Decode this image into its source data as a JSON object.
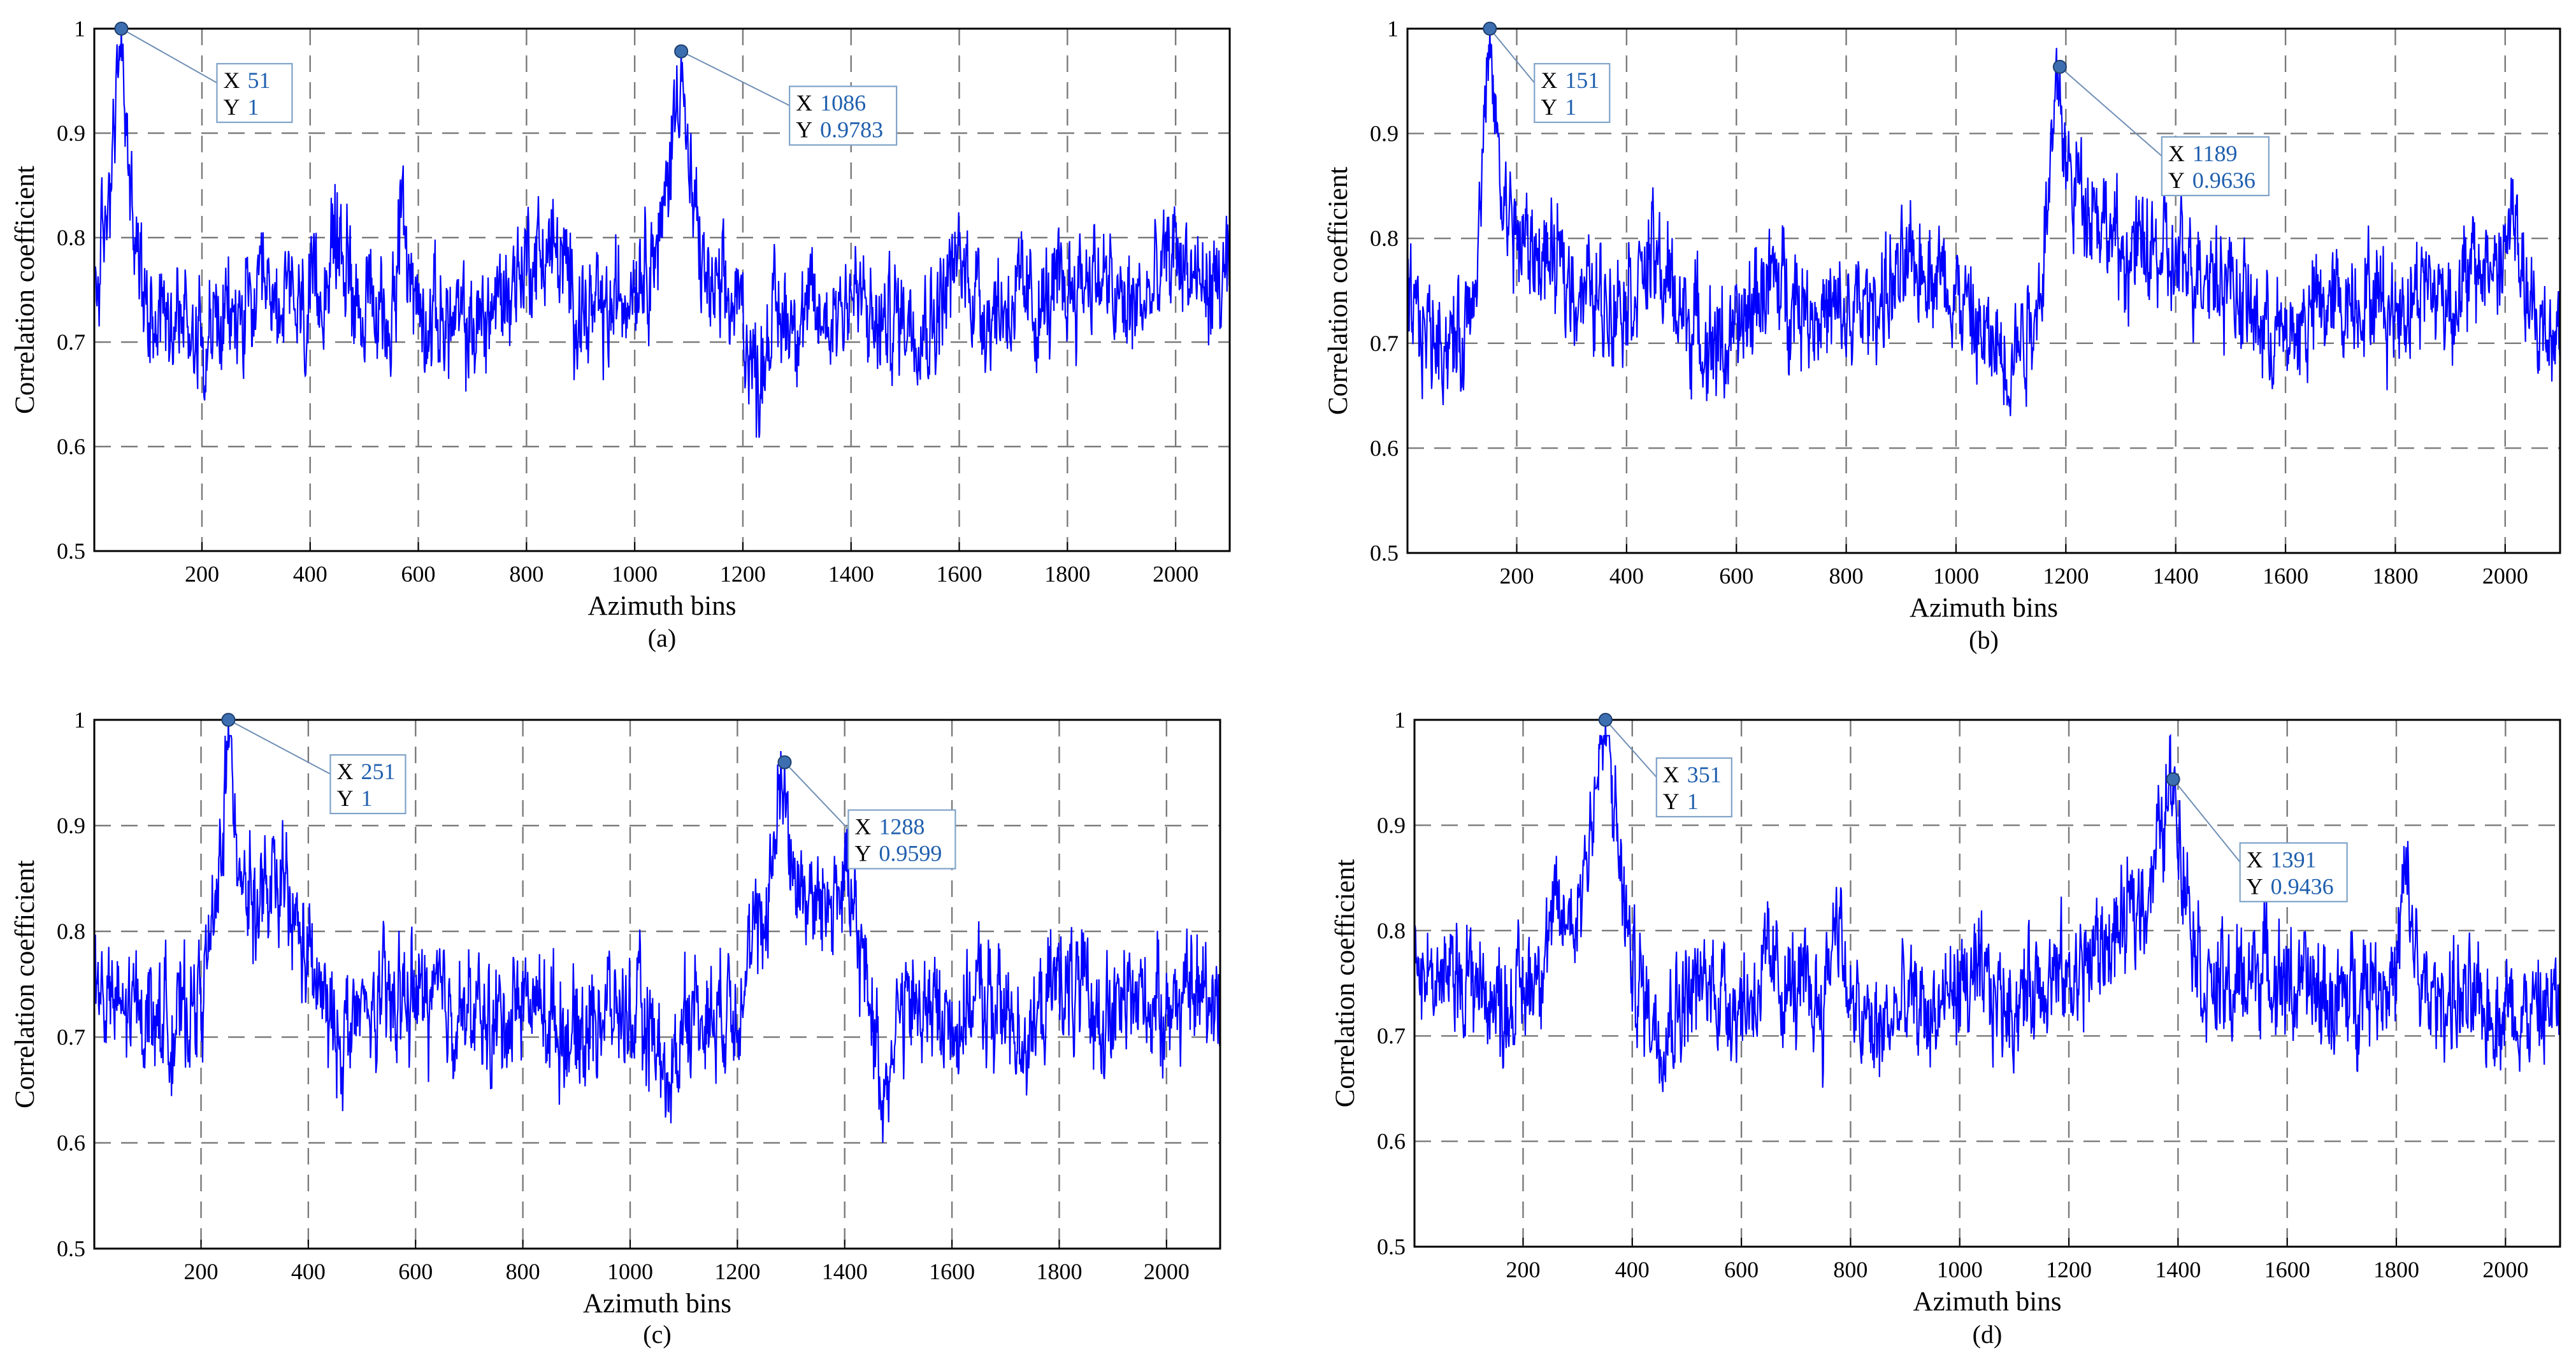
{
  "figure": {
    "panels": [
      {
        "caption": "(a)",
        "chart_data": {
          "type": "line",
          "xlabel": "Azimuth bins",
          "ylabel": "Correlation coefficient",
          "xlim": [
            1,
            2100
          ],
          "ylim": [
            0.5,
            1
          ],
          "xticks": [
            "200",
            "400",
            "600",
            "800",
            "1000",
            "1200",
            "1400",
            "1600",
            "1800",
            "2000"
          ],
          "yticks": [
            "0.5",
            "0.6",
            "0.7",
            "0.8",
            "0.9",
            "1"
          ],
          "grid": true,
          "line_color": "#0000ff",
          "series": [
            {
              "x": [
                1,
                20,
                40,
                51,
                60,
                80,
                100,
                150,
                200,
                250,
                300,
                350,
                400,
                450,
                500,
                550,
                565,
                600,
                650,
                700,
                750,
                800,
                850,
                900,
                950,
                1000,
                1050,
                1070,
                1086,
                1100,
                1130,
                1150,
                1200,
                1225,
                1250,
                1300,
                1350,
                1400,
                1450,
                1500,
                1550,
                1600,
                1650,
                1700,
                1750,
                1800,
                1850,
                1900,
                1950,
                2000,
                2050,
                2100
              ],
              "y": [
                0.74,
                0.8,
                0.92,
                1.0,
                0.9,
                0.78,
                0.74,
                0.73,
                0.71,
                0.72,
                0.73,
                0.74,
                0.72,
                0.8,
                0.73,
                0.72,
                0.82,
                0.73,
                0.72,
                0.71,
                0.74,
                0.78,
                0.79,
                0.73,
                0.72,
                0.77,
                0.8,
                0.9,
                0.9783,
                0.85,
                0.76,
                0.74,
                0.73,
                0.66,
                0.72,
                0.73,
                0.72,
                0.75,
                0.71,
                0.73,
                0.72,
                0.78,
                0.73,
                0.74,
                0.73,
                0.75,
                0.77,
                0.73,
                0.74,
                0.79,
                0.75,
                0.76
              ]
            }
          ],
          "annotations": [
            {
              "x": 51,
              "y": 1,
              "x_label": "X",
              "y_label": "Y",
              "x_text": "51",
              "y_text": "1"
            },
            {
              "x": 1086,
              "y": 0.9783,
              "x_label": "X",
              "y_label": "Y",
              "x_text": "1086",
              "y_text": "0.9783"
            }
          ]
        }
      },
      {
        "caption": "(b)",
        "chart_data": {
          "type": "line",
          "xlabel": "Azimuth bins",
          "ylabel": "Correlation coefficient",
          "xlim": [
            1,
            2100
          ],
          "ylim": [
            0.5,
            1
          ],
          "xticks": [
            "200",
            "400",
            "600",
            "800",
            "1000",
            "1200",
            "1400",
            "1600",
            "1800",
            "2000"
          ],
          "yticks": [
            "0.5",
            "0.6",
            "0.7",
            "0.8",
            "0.9",
            "1"
          ],
          "grid": true,
          "line_color": "#0000ff",
          "series": [
            {
              "x": [
                1,
                50,
                100,
                130,
                151,
                170,
                200,
                250,
                300,
                350,
                400,
                450,
                500,
                550,
                600,
                650,
                700,
                750,
                800,
                850,
                900,
                950,
                1000,
                1050,
                1100,
                1150,
                1189,
                1200,
                1250,
                1300,
                1350,
                1400,
                1450,
                1500,
                1550,
                1600,
                1650,
                1700,
                1750,
                1800,
                1850,
                1900,
                1950,
                2000,
                2010,
                2050,
                2100
              ],
              "y": [
                0.72,
                0.71,
                0.7,
                0.8,
                1.0,
                0.85,
                0.8,
                0.78,
                0.76,
                0.74,
                0.75,
                0.78,
                0.73,
                0.7,
                0.7,
                0.76,
                0.75,
                0.73,
                0.72,
                0.74,
                0.76,
                0.78,
                0.75,
                0.7,
                0.69,
                0.74,
                0.9636,
                0.86,
                0.84,
                0.78,
                0.79,
                0.77,
                0.78,
                0.76,
                0.72,
                0.7,
                0.73,
                0.74,
                0.75,
                0.73,
                0.76,
                0.74,
                0.77,
                0.78,
                0.83,
                0.71,
                0.72
              ]
            }
          ],
          "annotations": [
            {
              "x": 151,
              "y": 1,
              "x_label": "X",
              "y_label": "Y",
              "x_text": "151",
              "y_text": "1"
            },
            {
              "x": 1189,
              "y": 0.9636,
              "x_label": "X",
              "y_label": "Y",
              "x_text": "1189",
              "y_text": "0.9636"
            }
          ]
        }
      },
      {
        "caption": "(c)",
        "chart_data": {
          "type": "line",
          "xlabel": "Azimuth bins",
          "ylabel": "Correlation coefficient",
          "xlim": [
            1,
            2100
          ],
          "ylim": [
            0.5,
            1
          ],
          "xticks": [
            "200",
            "400",
            "600",
            "800",
            "1000",
            "1200",
            "1400",
            "1600",
            "1800",
            "2000"
          ],
          "yticks": [
            "0.5",
            "0.6",
            "0.7",
            "0.8",
            "0.9",
            "1"
          ],
          "grid": true,
          "line_color": "#0000ff",
          "series": [
            {
              "x": [
                1,
                50,
                100,
                150,
                200,
                230,
                251,
                270,
                300,
                350,
                400,
                450,
                500,
                550,
                600,
                650,
                700,
                750,
                800,
                850,
                900,
                950,
                1000,
                1050,
                1075,
                1100,
                1150,
                1200,
                1250,
                1288,
                1300,
                1350,
                1400,
                1450,
                1470,
                1500,
                1550,
                1600,
                1650,
                1700,
                1750,
                1800,
                1850,
                1900,
                1950,
                2000,
                2050,
                2100
              ],
              "y": [
                0.75,
                0.72,
                0.73,
                0.71,
                0.74,
                0.82,
                1.0,
                0.88,
                0.82,
                0.84,
                0.77,
                0.7,
                0.72,
                0.73,
                0.74,
                0.73,
                0.72,
                0.71,
                0.74,
                0.72,
                0.7,
                0.73,
                0.72,
                0.7,
                0.64,
                0.73,
                0.72,
                0.74,
                0.81,
                0.9599,
                0.86,
                0.82,
                0.85,
                0.73,
                0.65,
                0.72,
                0.73,
                0.71,
                0.74,
                0.72,
                0.7,
                0.76,
                0.73,
                0.72,
                0.74,
                0.73,
                0.74,
                0.75
              ]
            }
          ],
          "annotations": [
            {
              "x": 251,
              "y": 1,
              "x_label": "X",
              "y_label": "Y",
              "x_text": "251",
              "y_text": "1"
            },
            {
              "x": 1288,
              "y": 0.9599,
              "x_label": "X",
              "y_label": "Y",
              "x_text": "1288",
              "y_text": "0.9599"
            }
          ]
        }
      },
      {
        "caption": "(d)",
        "chart_data": {
          "type": "line",
          "xlabel": "Azimuth bins",
          "ylabel": "Correlation coefficient",
          "xlim": [
            1,
            2100
          ],
          "ylim": [
            0.5,
            1
          ],
          "xticks": [
            "200",
            "400",
            "600",
            "800",
            "1000",
            "1200",
            "1400",
            "1600",
            "1800",
            "2000"
          ],
          "yticks": [
            "0.5",
            "0.6",
            "0.7",
            "0.8",
            "0.9",
            "1"
          ],
          "grid": true,
          "line_color": "#0000ff",
          "series": [
            {
              "x": [
                1,
                50,
                100,
                150,
                200,
                250,
                300,
                351,
                380,
                400,
                450,
                500,
                550,
                600,
                650,
                700,
                750,
                775,
                800,
                850,
                900,
                950,
                1000,
                1050,
                1100,
                1150,
                1200,
                1250,
                1300,
                1350,
                1391,
                1420,
                1450,
                1500,
                1550,
                1600,
                1650,
                1700,
                1750,
                1800,
                1815,
                1850,
                1900,
                1950,
                2000,
                2050,
                2100
              ],
              "y": [
                0.77,
                0.75,
                0.76,
                0.73,
                0.74,
                0.8,
                0.82,
                1.0,
                0.85,
                0.76,
                0.71,
                0.74,
                0.75,
                0.73,
                0.76,
                0.74,
                0.73,
                0.83,
                0.72,
                0.7,
                0.73,
                0.72,
                0.75,
                0.74,
                0.73,
                0.76,
                0.75,
                0.78,
                0.8,
                0.85,
                0.9436,
                0.83,
                0.75,
                0.74,
                0.77,
                0.75,
                0.74,
                0.73,
                0.76,
                0.75,
                0.85,
                0.73,
                0.74,
                0.72,
                0.73,
                0.72,
                0.73
              ]
            }
          ],
          "annotations": [
            {
              "x": 351,
              "y": 1,
              "x_label": "X",
              "y_label": "Y",
              "x_text": "351",
              "y_text": "1"
            },
            {
              "x": 1391,
              "y": 0.9436,
              "x_label": "X",
              "y_label": "Y",
              "x_text": "1391",
              "y_text": "0.9436"
            }
          ]
        }
      }
    ]
  }
}
